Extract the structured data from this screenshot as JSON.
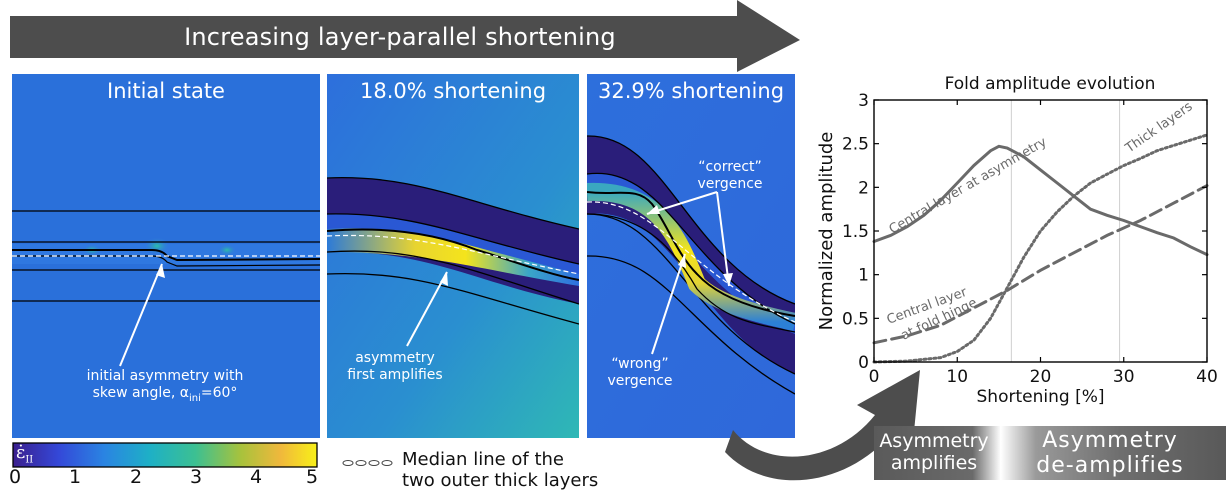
{
  "banner": {
    "text": "Increasing layer-parallel shortening"
  },
  "panels": [
    {
      "title": "Initial state",
      "annotation_lines": [
        "initial asymmetry with",
        "skew angle, α",
        "ini",
        "=60°"
      ]
    },
    {
      "title": "18.0% shortening",
      "annotation_lines": [
        "asymmetry",
        "first amplifies"
      ]
    },
    {
      "title": "32.9% shortening",
      "annotation_top": [
        "“correct”",
        "vergence"
      ],
      "annotation_bottom": [
        "“wrong”",
        "vergence"
      ]
    }
  ],
  "colorbar": {
    "symbol": "ε̇",
    "subscript": "II",
    "ticks": [
      "0",
      "1",
      "2",
      "3",
      "4",
      "5"
    ]
  },
  "legend": {
    "line1": "Median line of the",
    "line2": "two outer thick layers"
  },
  "asymmetry_labels": {
    "amplifies_1": "Asymmetry",
    "amplifies_2": "amplifies",
    "deamp_1": "Asymmetry",
    "deamp_2": "de-amplifies"
  },
  "colors": {
    "dark_gray": "#4d4d4d",
    "field_blue": "#2a73d9",
    "yellow": "#f7e61e",
    "curve": "#6a6a6a"
  },
  "chart_data": {
    "type": "line",
    "title": "Fold amplitude evolution",
    "xlabel": "Shortening [%]",
    "ylabel": "Normalized amplitude",
    "xlim": [
      0,
      40
    ],
    "ylim": [
      0,
      3
    ],
    "xticks": [
      "0",
      "10",
      "20",
      "30",
      "40"
    ],
    "yticks": [
      "0",
      "0.5",
      "1",
      "1.5",
      "2",
      "2.5",
      "3"
    ],
    "vlines": [
      16.5,
      29.5
    ],
    "series": [
      {
        "name": "Central layer at asymmetry",
        "style": "solid",
        "x": [
          0,
          2,
          4,
          6,
          8,
          10,
          12,
          14,
          15,
          16,
          18,
          20,
          22,
          24,
          26,
          28,
          30,
          32,
          34,
          36,
          38,
          40
        ],
        "y": [
          1.38,
          1.45,
          1.55,
          1.68,
          1.85,
          2.05,
          2.25,
          2.42,
          2.47,
          2.45,
          2.35,
          2.2,
          2.05,
          1.9,
          1.75,
          1.68,
          1.62,
          1.55,
          1.48,
          1.42,
          1.32,
          1.23
        ]
      },
      {
        "name": "Central layer at fold hinge",
        "style": "dashed",
        "x": [
          0,
          4,
          8,
          12,
          16,
          20,
          24,
          28,
          32,
          36,
          40
        ],
        "y": [
          0.22,
          0.3,
          0.42,
          0.62,
          0.82,
          1.05,
          1.25,
          1.45,
          1.62,
          1.82,
          2.02
        ]
      },
      {
        "name": "Thick layers",
        "style": "dotted",
        "x": [
          0,
          4,
          8,
          10,
          12,
          14,
          16,
          18,
          20,
          22,
          24,
          26,
          28,
          30,
          32,
          34,
          36,
          38,
          40
        ],
        "y": [
          0.0,
          0.01,
          0.05,
          0.12,
          0.25,
          0.5,
          0.85,
          1.2,
          1.5,
          1.72,
          1.9,
          2.05,
          2.15,
          2.25,
          2.33,
          2.42,
          2.48,
          2.54,
          2.6
        ]
      }
    ],
    "series_labels": [
      {
        "text": "Central layer at asymmetry",
        "x": 11.5,
        "y": 1.98,
        "rot": -30
      },
      {
        "text": "Thick layers",
        "x": 34.5,
        "y": 2.65,
        "rot": -35
      },
      {
        "text": "Central layer",
        "x": 6.5,
        "y": 0.6,
        "rot": -20
      },
      {
        "text": "at fold hinge",
        "x": 8,
        "y": 0.45,
        "rot": -25
      }
    ]
  }
}
